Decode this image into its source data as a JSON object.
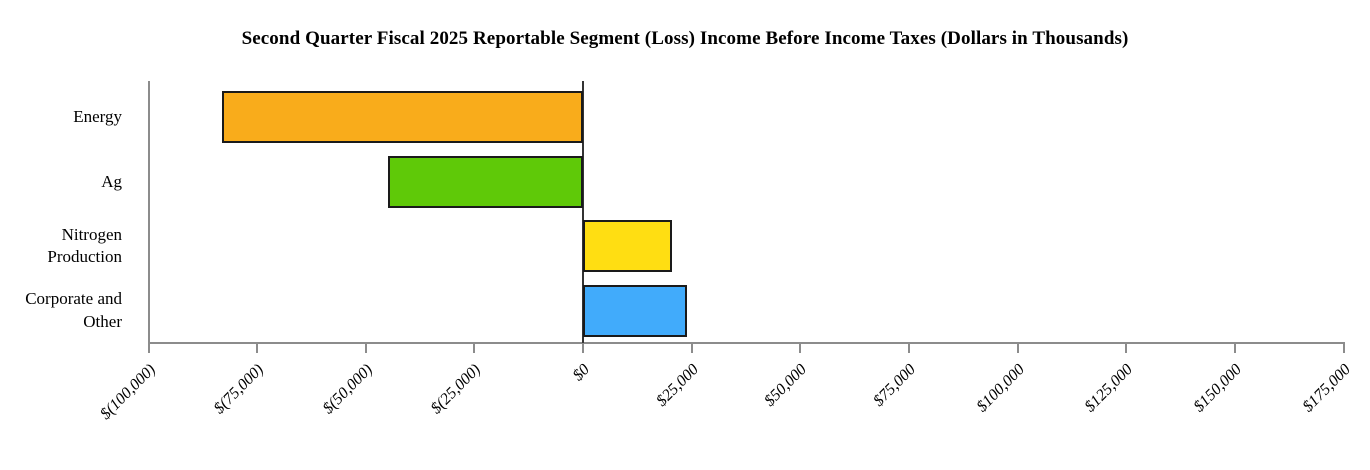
{
  "chart_data": {
    "type": "bar",
    "orientation": "horizontal",
    "title": "Second Quarter Fiscal 2025 Reportable Segment (Loss) Income Before Income Taxes (Dollars in Thousands)",
    "categories": [
      "Energy",
      "Ag",
      "Nitrogen Production",
      "Corporate and Other"
    ],
    "values": [
      -83000,
      -45000,
      20500,
      24000
    ],
    "bar_colors": [
      "#F9AC1B",
      "#5FC908",
      "#FFDE12",
      "#41ABFB"
    ],
    "bar_border_color": "#1A1A1A",
    "x_axis": {
      "min": -100000,
      "max": 175000,
      "tick_step": 25000,
      "tick_labels": [
        "$(100,000)",
        "$(75,000)",
        "$(50,000)",
        "$(25,000)",
        "$0",
        "$25,000",
        "$50,000",
        "$75,000",
        "$100,000",
        "$125,000",
        "$150,000",
        "$175,000"
      ],
      "tick_label_rotation_deg": 45
    },
    "axis_color": "#8C8C8C",
    "zero_line_color": "#333333",
    "background_color": "#FFFFFF",
    "grid": false,
    "legend": null
  }
}
